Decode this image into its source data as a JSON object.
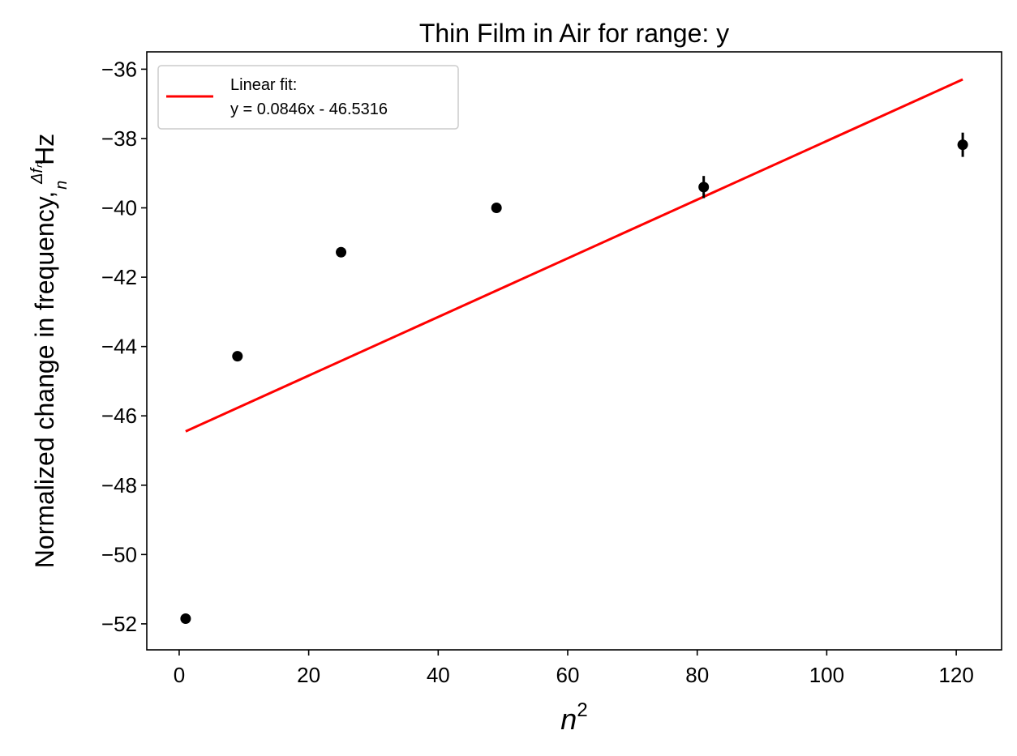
{
  "chart_data": {
    "type": "scatter",
    "title": "Thin Film in Air for range: y",
    "xlabel": "n²",
    "ylabel": "Normalized change in frequency, Δfₙ/n Hz",
    "xlim": [
      -5,
      127
    ],
    "ylim": [
      -52.75,
      -35.5
    ],
    "x_ticks": [
      0,
      20,
      40,
      60,
      80,
      100,
      120
    ],
    "y_ticks": [
      -52,
      -50,
      -48,
      -46,
      -44,
      -42,
      -40,
      -38,
      -36
    ],
    "x_tick_labels": [
      "0",
      "20",
      "40",
      "60",
      "80",
      "100",
      "120"
    ],
    "y_tick_labels": [
      "−52",
      "−50",
      "−48",
      "−46",
      "−44",
      "−42",
      "−40",
      "−38",
      "−36"
    ],
    "grid": false,
    "legend_position": "top-left",
    "series": [
      {
        "kind": "points",
        "color": "#000000",
        "x": [
          1,
          9,
          25,
          49,
          81,
          121
        ],
        "y": [
          -51.85,
          -44.28,
          -41.28,
          -40.0,
          -39.4,
          -38.18
        ],
        "yerr": [
          0.05,
          0.05,
          0.05,
          0.05,
          0.32,
          0.35
        ]
      },
      {
        "kind": "line",
        "name": "Linear fit:\ny = 0.0846x - 46.5316",
        "legend_lines": [
          "Linear fit:",
          "y = 0.0846x - 46.5316"
        ],
        "color": "#ff0000",
        "slope": 0.0846,
        "intercept": -46.5316,
        "x_range": [
          1,
          121
        ]
      }
    ]
  }
}
